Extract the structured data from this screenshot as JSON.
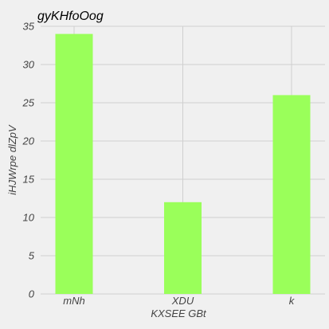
{
  "chart_data": {
    "type": "bar",
    "title": "gyKHfoOog",
    "xlabel": "KXSEE GBt",
    "ylabel": "iHJWrpe dlZpV",
    "categories": [
      "mNh",
      "XDU",
      "k"
    ],
    "values": [
      34,
      12,
      26
    ],
    "ylim": [
      0,
      35
    ],
    "yticks": [
      0,
      5,
      10,
      15,
      20,
      25,
      30,
      35
    ],
    "grid": true,
    "bar_color": "#9aff5a",
    "background": "#f0f0f0",
    "grid_color": "#cfcfcf"
  }
}
